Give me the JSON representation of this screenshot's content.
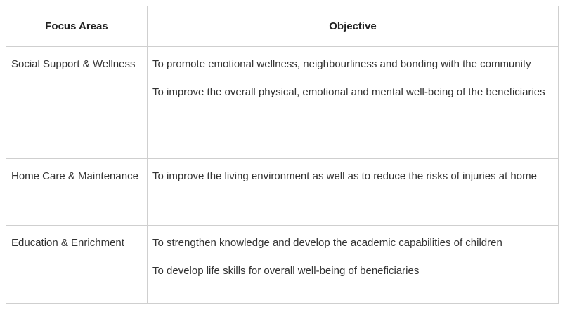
{
  "table": {
    "headers": [
      "Focus Areas",
      "Objective"
    ],
    "rows": [
      {
        "area": "Social Support & Wellness",
        "objectives": [
          "To promote emotional wellness, neighbourliness and bonding with the community",
          "To improve the overall physical, emotional and mental well-being of the beneficiaries"
        ]
      },
      {
        "area": "Home Care & Maintenance",
        "objectives": [
          "To improve the living environment as well as to reduce the risks of injuries at home"
        ]
      },
      {
        "area": "Education & Enrichment",
        "objectives": [
          "To strengthen knowledge and develop the academic capabilities of children",
          "To develop life skills for overall well-being of beneficiaries"
        ]
      }
    ]
  }
}
